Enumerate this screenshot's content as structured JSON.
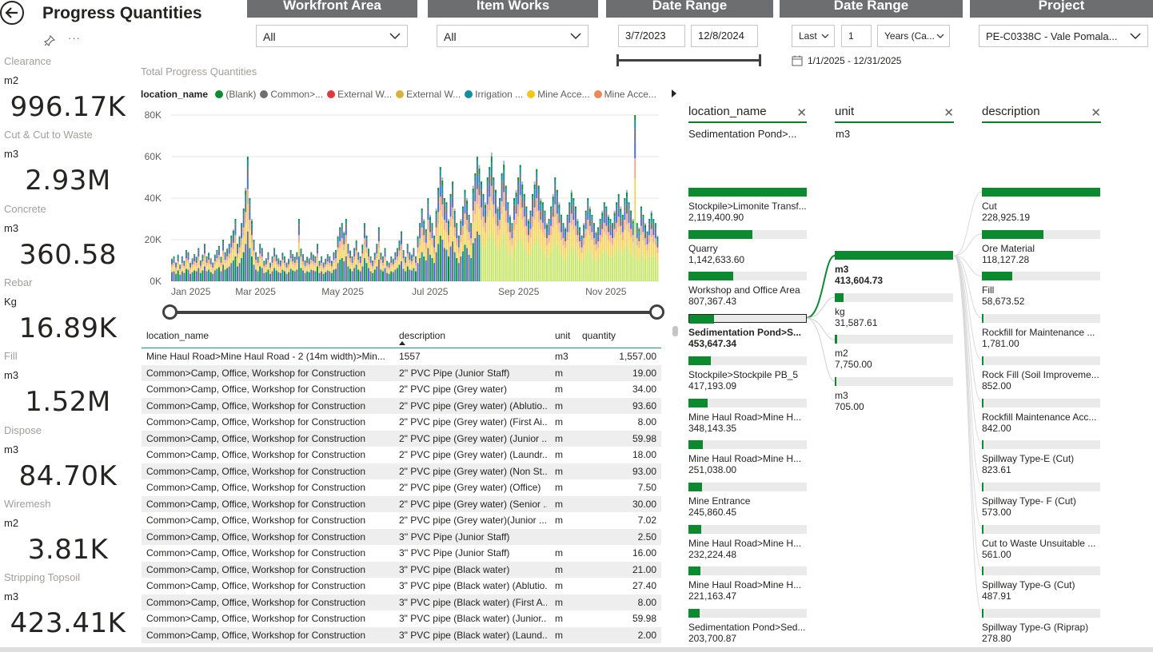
{
  "header": {
    "title": "Progress Quantities"
  },
  "slicers": {
    "workfront": {
      "title": "Workfront Area",
      "value": "All"
    },
    "item_works": {
      "title": "Item Works",
      "value": "All"
    },
    "date_range_1": {
      "title": "Date Range",
      "start": "3/7/2023",
      "end": "12/8/2024"
    },
    "date_range_2": {
      "title": "Date Range",
      "mode": "Last",
      "count": "1",
      "period": "Years (Ca...",
      "range_text": "1/1/2025 - 12/31/2025"
    },
    "project": {
      "title": "Project",
      "value": "PE-C0338C - Vale Pomala..."
    }
  },
  "kpis": [
    {
      "label": "Clearance",
      "unit": "m2",
      "value": "996.17K"
    },
    {
      "label": "Cut & Cut to Waste",
      "unit": "m3",
      "value": "2.93M"
    },
    {
      "label": "Concrete",
      "unit": "m3",
      "value": "360.58"
    },
    {
      "label": "Rebar",
      "unit": "Kg",
      "value": "16.89K"
    },
    {
      "label": "Fill",
      "unit": "m3",
      "value": "1.52M"
    },
    {
      "label": "Dispose",
      "unit": "m3",
      "value": "84.70K"
    },
    {
      "label": "Wiremesh",
      "unit": "m2",
      "value": "3.81K"
    },
    {
      "label": "Stripping Topsoil",
      "unit": "m3",
      "value": "423.41K"
    }
  ],
  "chart_data": {
    "type": "bar",
    "stacked": true,
    "title": "Total Progress Quantities",
    "legend_title": "location_name",
    "legend_position": "top-left",
    "series_legend": [
      {
        "name": "(Blank)",
        "color": "#0b8a2f"
      },
      {
        "name": "Common>...",
        "color": "#6d6e70"
      },
      {
        "name": "External W...",
        "color": "#e0393e"
      },
      {
        "name": "External W...",
        "color": "#d9b13c"
      },
      {
        "name": "Irrigation ...",
        "color": "#118da0"
      },
      {
        "name": "Mine Acce...",
        "color": "#f5c518"
      },
      {
        "name": "Mine Acce...",
        "color": "#ee8656"
      }
    ],
    "x_ticks": [
      "Jan 2025",
      "Mar 2025",
      "May 2025",
      "Jul 2025",
      "Sep 2025",
      "Nov 2025"
    ],
    "y_ticks": [
      "0K",
      "20K",
      "40K",
      "60K",
      "80K"
    ],
    "ylim": [
      0,
      80000
    ],
    "x_range": [
      "2025-01-01",
      "2025-12-08"
    ],
    "grid": true,
    "daily_totals_k": [
      11,
      12,
      9,
      13,
      8,
      12,
      10,
      15,
      14,
      9,
      11,
      13,
      12,
      16,
      10,
      13,
      18,
      12,
      14,
      11,
      9,
      13,
      15,
      17,
      12,
      20,
      14,
      16,
      18,
      22,
      25,
      30,
      18,
      22,
      28,
      35,
      45,
      60,
      40,
      30,
      20,
      14,
      12,
      18,
      16,
      10,
      11,
      14,
      9,
      12,
      16,
      13,
      11,
      10,
      14,
      12,
      9,
      11,
      15,
      13,
      12,
      14,
      30,
      16,
      13,
      10,
      12,
      11,
      14,
      13,
      12,
      18,
      10,
      12,
      9,
      11,
      13,
      12,
      10,
      14,
      15,
      22,
      26,
      28,
      24,
      30,
      18,
      15,
      12,
      16,
      20,
      14,
      12,
      18,
      28,
      22,
      16,
      12,
      10,
      14,
      18,
      26,
      14,
      12,
      16,
      10,
      9,
      12,
      11,
      14,
      16,
      20,
      24,
      15,
      12,
      18,
      14,
      13,
      16,
      12,
      22,
      28,
      35,
      30,
      25,
      40,
      32,
      28,
      22,
      35,
      45,
      55,
      50,
      40,
      38,
      30,
      42,
      48,
      35,
      28,
      22,
      30,
      36,
      44,
      40,
      32,
      28,
      46,
      52,
      60,
      56,
      48,
      42,
      38,
      50,
      55,
      62,
      50,
      44,
      36,
      40,
      52,
      58,
      46,
      38,
      32,
      28,
      40,
      44,
      50,
      56,
      48,
      42,
      36,
      30,
      34,
      42,
      48,
      54,
      46,
      40,
      38,
      34,
      28,
      30,
      36,
      42,
      50,
      44,
      38,
      32,
      28,
      26,
      32,
      38,
      44,
      40,
      36,
      30,
      26,
      22,
      28,
      34,
      40,
      36,
      32,
      28,
      24,
      26,
      30,
      34,
      38,
      36,
      32,
      30,
      28,
      34,
      38,
      42,
      36,
      32,
      40,
      44,
      38,
      34,
      30,
      80,
      28,
      26,
      36,
      32,
      28,
      24,
      30,
      34,
      30,
      28,
      22
    ]
  },
  "table": {
    "columns": [
      "location_name",
      "description",
      "unit",
      "quantity"
    ],
    "rows": [
      [
        "Mine Haul Road>Mine Haul Road - 2 (14m width)>Min...",
        "1557",
        "m3",
        "1,557.00"
      ],
      [
        "Common>Camp, Office, Workshop for Construction",
        "2'' PVC Pipe (Junior Staff)",
        "m",
        "19.00"
      ],
      [
        "Common>Camp, Office, Workshop for Construction",
        "2\" PVC pipe (Grey water)",
        "m",
        "34.00"
      ],
      [
        "Common>Camp, Office, Workshop for Construction",
        "2\" PVC pipe (Grey water) (Ablutio...",
        "m",
        "93.60"
      ],
      [
        "Common>Camp, Office, Workshop for Construction",
        "2\" PVC pipe (Grey water) (First Ai...",
        "m",
        "8.00"
      ],
      [
        "Common>Camp, Office, Workshop for Construction",
        "2\" PVC pipe (Grey water) (Junior ...",
        "m",
        "59.98"
      ],
      [
        "Common>Camp, Office, Workshop for Construction",
        "2\" PVC pipe (Grey water) (Laundr...",
        "m",
        "18.00"
      ],
      [
        "Common>Camp, Office, Workshop for Construction",
        "2\" PVC pipe (Grey water) (Non St...",
        "m",
        "93.00"
      ],
      [
        "Common>Camp, Office, Workshop for Construction",
        "2\" PVC pipe (Grey water) (Office)",
        "m",
        "7.50"
      ],
      [
        "Common>Camp, Office, Workshop for Construction",
        "2\" PVC pipe (Grey water) (Senior ...",
        "m",
        "30.00"
      ],
      [
        "Common>Camp, Office, Workshop for Construction",
        "2\" PVC pipe (Grey water)(Junior ...",
        "m",
        "7.02"
      ],
      [
        "Common>Camp, Office, Workshop for Construction",
        "3'' PVC Pipe (Junior Staff)",
        "",
        "2.50"
      ],
      [
        "Common>Camp, Office, Workshop for Construction",
        "3'' PVC Pipe (Junior Staff)",
        "m",
        "16.00"
      ],
      [
        "Common>Camp, Office, Workshop for Construction",
        "3\" PVC pipe (Black water)",
        "m",
        "21.00"
      ],
      [
        "Common>Camp, Office, Workshop for Construction",
        "3\" PVC pipe (Black water) (Ablutio...",
        "m",
        "27.40"
      ],
      [
        "Common>Camp, Office, Workshop for Construction",
        "3\" PVC pipe (Black water) (First A...",
        "m",
        "8.00"
      ],
      [
        "Common>Camp, Office, Workshop for Construction",
        "3\" PVC pipe (Black water) (Junior...",
        "m",
        "59.98"
      ],
      [
        "Common>Camp, Office, Workshop for Construction",
        "3\" PVC pipe (Black water) (Laund...",
        "m",
        "2.00"
      ]
    ]
  },
  "decomp": {
    "headers": [
      "location_name",
      "unit",
      "description"
    ],
    "selected": [
      "Sedimentation Pond>...",
      "m3",
      ""
    ],
    "location_nodes": [
      {
        "label": "Stockpile>Limonite Transf...",
        "value": "2,119,400.90",
        "ratio": 1.0
      },
      {
        "label": "Quarry",
        "value": "1,142,633.60",
        "ratio": 0.54
      },
      {
        "label": "Workshop and Office Area",
        "value": "807,367.43",
        "ratio": 0.38
      },
      {
        "label": "Sedimentation Pond>S...",
        "value": "453,647.34",
        "ratio": 0.21,
        "selected": true
      },
      {
        "label": "Stockpile>Stockpile PB_5",
        "value": "417,193.09",
        "ratio": 0.19
      },
      {
        "label": "Mine Haul Road>Mine H...",
        "value": "348,143.35",
        "ratio": 0.16
      },
      {
        "label": "Mine Haul Road>Mine H...",
        "value": "251,038.00",
        "ratio": 0.12
      },
      {
        "label": "Mine Entrance",
        "value": "245,860.45",
        "ratio": 0.115
      },
      {
        "label": "Mine Haul Road>Mine H...",
        "value": "232,224.48",
        "ratio": 0.11
      },
      {
        "label": "Mine Haul Road>Mine H...",
        "value": "221,163.47",
        "ratio": 0.1
      },
      {
        "label": "Sedimentation Pond>Sed...",
        "value": "203,700.87",
        "ratio": 0.095
      }
    ],
    "unit_nodes": [
      {
        "label": "m3",
        "value": "413,604.73",
        "ratio": 1.0,
        "bold": true
      },
      {
        "label": "kg",
        "value": "31,587.61",
        "ratio": 0.076
      },
      {
        "label": "m2",
        "value": "7,750.00",
        "ratio": 0.019
      },
      {
        "label": "m3",
        "value": "705.00",
        "ratio": 0.002
      }
    ],
    "desc_nodes": [
      {
        "label": "Cut",
        "value": "228,925.19",
        "ratio": 1.0
      },
      {
        "label": "Ore Material",
        "value": "118,127.28",
        "ratio": 0.52
      },
      {
        "label": "Fill",
        "value": "58,673.52",
        "ratio": 0.26
      },
      {
        "label": "Rockfill for Maintenance ...",
        "value": "1,781.00",
        "ratio": 0.008
      },
      {
        "label": "Rock Fill (Soil Improveme...",
        "value": "852.00",
        "ratio": 0.004
      },
      {
        "label": "Rockfill Maintenance Acc...",
        "value": "842.00",
        "ratio": 0.004
      },
      {
        "label": "Spillway Type-E (Cut)",
        "value": "823.61",
        "ratio": 0.004
      },
      {
        "label": "Spillway Type- F (Cut)",
        "value": "573.00",
        "ratio": 0.003
      },
      {
        "label": "Cut to Waste Unsuitable ...",
        "value": "561.00",
        "ratio": 0.003
      },
      {
        "label": "Spillway Type-G (Cut)",
        "value": "487.91",
        "ratio": 0.002
      },
      {
        "label": "Spillway Type-G (Riprap)",
        "value": "278.80",
        "ratio": 0.001
      }
    ]
  }
}
